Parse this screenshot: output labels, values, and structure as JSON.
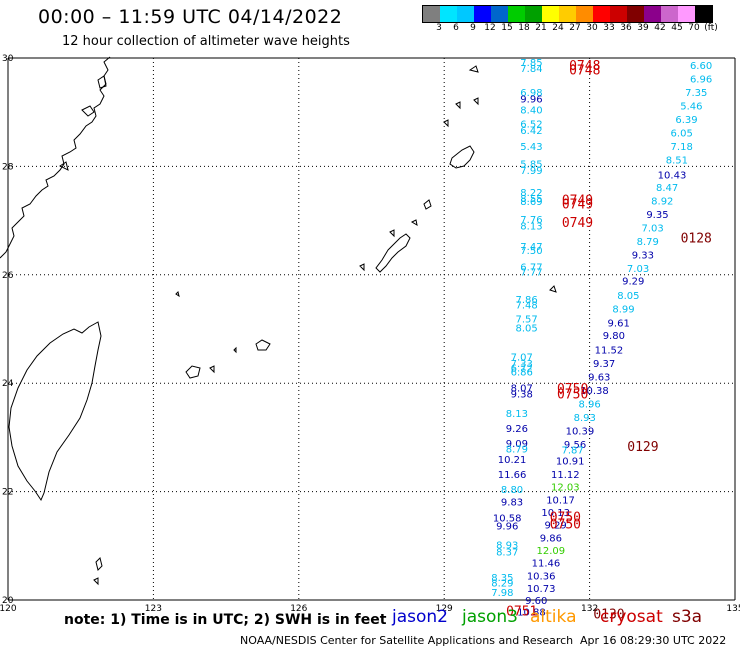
{
  "header": {
    "title": "00:00 – 11:59 UTC 04/14/2022",
    "subtitle": "12 hour collection of altimeter wave heights"
  },
  "scale": {
    "colors": [
      "#7f7f7f",
      "#00e5ff",
      "#00c8ff",
      "#0000ff",
      "#0066cc",
      "#00cc00",
      "#00a000",
      "#ffff00",
      "#ffcc00",
      "#ff8c00",
      "#ff0000",
      "#cc0000",
      "#800000",
      "#8b008b",
      "#cc66cc",
      "#ff99ff",
      "#000000"
    ],
    "labels": [
      "3",
      "6",
      "9",
      "12",
      "15",
      "18",
      "21",
      "24",
      "27",
      "30",
      "33",
      "36",
      "39",
      "42",
      "45",
      "70",
      "(ft)"
    ]
  },
  "axes": {
    "lon_ticks": [
      "120",
      "123",
      "126",
      "129",
      "132",
      "135"
    ],
    "lat_ticks": [
      "30",
      "28",
      "26",
      "24",
      "22",
      "20"
    ]
  },
  "colors": {
    "jason2": "#0000cc",
    "jason3": "#00a000",
    "altika": "#ff9900",
    "cryosat": "#cc0000",
    "s3a": "#800000",
    "cyan": "#00bbee",
    "blue": "#0000aa",
    "green": "#33cc00"
  },
  "wave_labels": [
    {
      "lon": 130.8,
      "lat": 29.85,
      "text": "7.85",
      "c": "cyan"
    },
    {
      "lon": 130.8,
      "lat": 29.74,
      "text": "7.84",
      "c": "cyan"
    },
    {
      "lon": 130.8,
      "lat": 29.3,
      "text": "6.98",
      "c": "cyan"
    },
    {
      "lon": 130.8,
      "lat": 29.18,
      "text": "9.96",
      "c": "blue"
    },
    {
      "lon": 130.8,
      "lat": 28.98,
      "text": "8.40",
      "c": "cyan"
    },
    {
      "lon": 130.8,
      "lat": 28.72,
      "text": "6.52",
      "c": "cyan"
    },
    {
      "lon": 130.8,
      "lat": 28.6,
      "text": "6.42",
      "c": "cyan"
    },
    {
      "lon": 130.8,
      "lat": 28.3,
      "text": "5.43",
      "c": "cyan"
    },
    {
      "lon": 130.8,
      "lat": 27.98,
      "text": "5.85",
      "c": "cyan"
    },
    {
      "lon": 130.8,
      "lat": 27.86,
      "text": "7.99",
      "c": "cyan"
    },
    {
      "lon": 130.8,
      "lat": 27.45,
      "text": "8.22",
      "c": "cyan"
    },
    {
      "lon": 130.8,
      "lat": 27.34,
      "text": "8.55",
      "c": "cyan"
    },
    {
      "lon": 130.8,
      "lat": 27.29,
      "text": "8.69",
      "c": "cyan"
    },
    {
      "lon": 130.8,
      "lat": 26.96,
      "text": "7.76",
      "c": "cyan"
    },
    {
      "lon": 130.8,
      "lat": 26.84,
      "text": "8.13",
      "c": "cyan"
    },
    {
      "lon": 130.8,
      "lat": 26.46,
      "text": "7.47",
      "c": "cyan"
    },
    {
      "lon": 130.8,
      "lat": 26.38,
      "text": "7.50",
      "c": "cyan"
    },
    {
      "lon": 130.8,
      "lat": 26.08,
      "text": "6.77",
      "c": "cyan"
    },
    {
      "lon": 130.8,
      "lat": 25.99,
      "text": "7.77",
      "c": "cyan"
    },
    {
      "lon": 130.7,
      "lat": 25.48,
      "text": "7.86",
      "c": "cyan"
    },
    {
      "lon": 130.7,
      "lat": 25.38,
      "text": "7.48",
      "c": "cyan"
    },
    {
      "lon": 130.7,
      "lat": 25.12,
      "text": "7.57",
      "c": "cyan"
    },
    {
      "lon": 130.7,
      "lat": 24.95,
      "text": "8.05",
      "c": "cyan"
    },
    {
      "lon": 130.6,
      "lat": 24.42,
      "text": "7.07",
      "c": "cyan"
    },
    {
      "lon": 130.6,
      "lat": 24.3,
      "text": "7.33",
      "c": "cyan"
    },
    {
      "lon": 130.6,
      "lat": 24.22,
      "text": "6.72",
      "c": "cyan"
    },
    {
      "lon": 130.6,
      "lat": 24.14,
      "text": "6.86",
      "c": "cyan"
    },
    {
      "lon": 130.6,
      "lat": 23.85,
      "text": "8.07",
      "c": "blue"
    },
    {
      "lon": 130.6,
      "lat": 23.74,
      "text": "9.38",
      "c": "blue"
    },
    {
      "lon": 130.5,
      "lat": 23.38,
      "text": "8.13",
      "c": "cyan"
    },
    {
      "lon": 130.5,
      "lat": 23.1,
      "text": "9.26",
      "c": "blue"
    },
    {
      "lon": 130.5,
      "lat": 22.82,
      "text": "9.09",
      "c": "blue"
    },
    {
      "lon": 130.5,
      "lat": 22.72,
      "text": "8.79",
      "c": "cyan"
    },
    {
      "lon": 130.4,
      "lat": 22.53,
      "text": "10.21",
      "c": "blue"
    },
    {
      "lon": 130.4,
      "lat": 22.25,
      "text": "11.66",
      "c": "blue"
    },
    {
      "lon": 130.4,
      "lat": 21.97,
      "text": "8.80",
      "c": "cyan"
    },
    {
      "lon": 130.4,
      "lat": 21.74,
      "text": "9.83",
      "c": "blue"
    },
    {
      "lon": 130.3,
      "lat": 21.45,
      "text": "10.58",
      "c": "blue"
    },
    {
      "lon": 130.3,
      "lat": 21.3,
      "text": "9.96",
      "c": "blue"
    },
    {
      "lon": 130.3,
      "lat": 20.95,
      "text": "8.93",
      "c": "cyan"
    },
    {
      "lon": 130.3,
      "lat": 20.82,
      "text": "8.37",
      "c": "cyan"
    },
    {
      "lon": 130.2,
      "lat": 20.35,
      "text": "8.35",
      "c": "cyan"
    },
    {
      "lon": 130.2,
      "lat": 20.25,
      "text": "8.29",
      "c": "cyan"
    },
    {
      "lon": 130.2,
      "lat": 20.07,
      "text": "7.98",
      "c": "cyan"
    },
    {
      "lon": 134.3,
      "lat": 29.8,
      "text": "6.60",
      "c": "cyan"
    },
    {
      "lon": 134.3,
      "lat": 29.55,
      "text": "6.96",
      "c": "cyan"
    },
    {
      "lon": 134.2,
      "lat": 29.3,
      "text": "7.35",
      "c": "cyan"
    },
    {
      "lon": 134.1,
      "lat": 29.05,
      "text": "5.46",
      "c": "cyan"
    },
    {
      "lon": 134.0,
      "lat": 28.8,
      "text": "6.39",
      "c": "cyan"
    },
    {
      "lon": 133.9,
      "lat": 28.55,
      "text": "6.05",
      "c": "cyan"
    },
    {
      "lon": 133.9,
      "lat": 28.3,
      "text": "7.18",
      "c": "cyan"
    },
    {
      "lon": 133.8,
      "lat": 28.05,
      "text": "8.51",
      "c": "cyan"
    },
    {
      "lon": 133.7,
      "lat": 27.78,
      "text": "10.43",
      "c": "blue"
    },
    {
      "lon": 133.6,
      "lat": 27.55,
      "text": "8.47",
      "c": "cyan"
    },
    {
      "lon": 133.5,
      "lat": 27.3,
      "text": "8.92",
      "c": "cyan"
    },
    {
      "lon": 133.4,
      "lat": 27.05,
      "text": "9.35",
      "c": "blue"
    },
    {
      "lon": 133.3,
      "lat": 26.8,
      "text": "7.03",
      "c": "cyan"
    },
    {
      "lon": 133.2,
      "lat": 26.55,
      "text": "8.79",
      "c": "cyan"
    },
    {
      "lon": 133.1,
      "lat": 26.3,
      "text": "9.33",
      "c": "blue"
    },
    {
      "lon": 133.0,
      "lat": 26.05,
      "text": "7.03",
      "c": "cyan"
    },
    {
      "lon": 132.9,
      "lat": 25.82,
      "text": "9.29",
      "c": "blue"
    },
    {
      "lon": 132.8,
      "lat": 25.55,
      "text": "8.05",
      "c": "cyan"
    },
    {
      "lon": 132.7,
      "lat": 25.3,
      "text": "8.99",
      "c": "cyan"
    },
    {
      "lon": 132.6,
      "lat": 25.05,
      "text": "9.61",
      "c": "blue"
    },
    {
      "lon": 132.5,
      "lat": 24.82,
      "text": "9.80",
      "c": "blue"
    },
    {
      "lon": 132.4,
      "lat": 24.55,
      "text": "11.52",
      "c": "blue"
    },
    {
      "lon": 132.3,
      "lat": 24.3,
      "text": "9.37",
      "c": "blue"
    },
    {
      "lon": 132.2,
      "lat": 24.05,
      "text": "9.63",
      "c": "blue"
    },
    {
      "lon": 132.1,
      "lat": 23.8,
      "text": "10.38",
      "c": "blue"
    },
    {
      "lon": 132.0,
      "lat": 23.55,
      "text": "8.96",
      "c": "cyan"
    },
    {
      "lon": 131.9,
      "lat": 23.3,
      "text": "8.93",
      "c": "cyan"
    },
    {
      "lon": 131.8,
      "lat": 23.05,
      "text": "10.39",
      "c": "blue"
    },
    {
      "lon": 131.7,
      "lat": 22.8,
      "text": "9.56",
      "c": "blue"
    },
    {
      "lon": 131.65,
      "lat": 22.7,
      "text": "7.87",
      "c": "cyan"
    },
    {
      "lon": 131.6,
      "lat": 22.5,
      "text": "10.91",
      "c": "blue"
    },
    {
      "lon": 131.5,
      "lat": 22.25,
      "text": "11.12",
      "c": "blue"
    },
    {
      "lon": 131.5,
      "lat": 22.02,
      "text": "12.03",
      "c": "green"
    },
    {
      "lon": 131.4,
      "lat": 21.78,
      "text": "10.17",
      "c": "blue"
    },
    {
      "lon": 131.3,
      "lat": 21.55,
      "text": "10.13",
      "c": "blue"
    },
    {
      "lon": 131.3,
      "lat": 21.32,
      "text": "9.29",
      "c": "blue"
    },
    {
      "lon": 131.2,
      "lat": 21.08,
      "text": "9.86",
      "c": "blue"
    },
    {
      "lon": 131.2,
      "lat": 20.85,
      "text": "12.09",
      "c": "green"
    },
    {
      "lon": 131.1,
      "lat": 20.62,
      "text": "11.46",
      "c": "blue"
    },
    {
      "lon": 131.0,
      "lat": 20.38,
      "text": "10.36",
      "c": "blue"
    },
    {
      "lon": 131.0,
      "lat": 20.15,
      "text": "10.73",
      "c": "blue"
    },
    {
      "lon": 130.9,
      "lat": 19.93,
      "text": "9.60",
      "c": "blue"
    },
    {
      "lon": 130.8,
      "lat": 19.71,
      "text": "10.88",
      "c": "blue"
    }
  ],
  "time_labels": [
    {
      "lon": 131.9,
      "lat": 29.78,
      "text": "0748",
      "c": "cryosat"
    },
    {
      "lon": 131.9,
      "lat": 29.7,
      "text": "0748",
      "c": "cryosat"
    },
    {
      "lon": 131.75,
      "lat": 27.3,
      "text": "0749",
      "c": "cryosat"
    },
    {
      "lon": 131.75,
      "lat": 27.22,
      "text": "0749",
      "c": "cryosat"
    },
    {
      "lon": 131.75,
      "lat": 26.88,
      "text": "0749",
      "c": "cryosat"
    },
    {
      "lon": 131.65,
      "lat": 23.82,
      "text": "0750",
      "c": "cryosat"
    },
    {
      "lon": 131.65,
      "lat": 23.72,
      "text": "0750",
      "c": "cryosat"
    },
    {
      "lon": 131.5,
      "lat": 21.45,
      "text": "0750",
      "c": "cryosat"
    },
    {
      "lon": 131.5,
      "lat": 21.32,
      "text": "0750",
      "c": "cryosat"
    },
    {
      "lon": 130.6,
      "lat": 19.71,
      "text": "0751",
      "c": "cryosat"
    },
    {
      "lon": 134.2,
      "lat": 26.6,
      "text": "0128",
      "c": "s3a"
    },
    {
      "lon": 133.1,
      "lat": 22.75,
      "text": "0129",
      "c": "s3a"
    },
    {
      "lon": 132.4,
      "lat": 19.66,
      "text": "0130",
      "c": "s3a"
    }
  ],
  "footer": {
    "note": "note:  1) Time is in UTC;  2) SWH is in feet",
    "legend": [
      "jason2",
      "jason3",
      "altika",
      "cryosat",
      "s3a"
    ],
    "credit": "NOAA/NESDIS Center for Satellite Applications and Research",
    "stamp": "Apr 16 08:29:30 UTC 2022"
  }
}
